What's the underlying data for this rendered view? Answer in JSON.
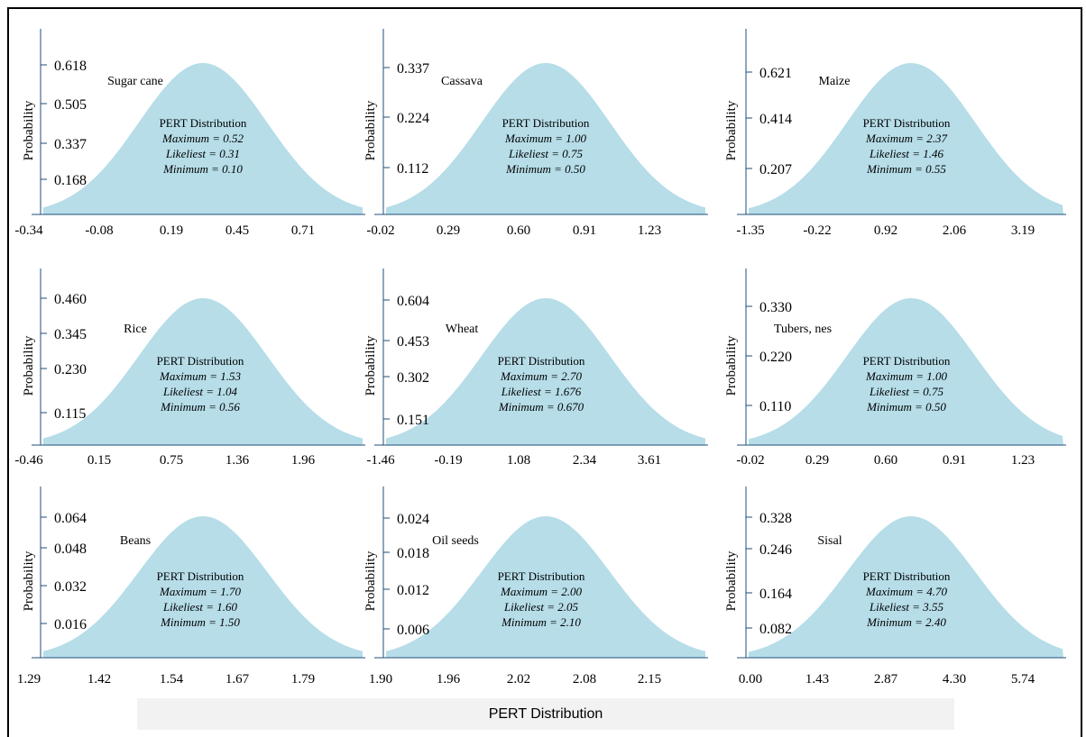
{
  "figure_caption": "PERT Distribution",
  "ylabel": "Probability",
  "colors": {
    "fill": "#b6dde8",
    "axis": "#1f4e79",
    "text": "#000000"
  },
  "chart_data": [
    {
      "type": "area",
      "title": "Sugar cane",
      "ylabel": "Probability",
      "xticks": [
        "-0.34",
        "-0.08",
        "0.19",
        "0.45",
        "0.71"
      ],
      "yticks": [
        "0.618",
        "0.505",
        "0.337",
        "0.168"
      ],
      "annotation": {
        "header": "PERT Distribution",
        "maximum": "Maximum = 0.52",
        "likeliest": "Likeliest = 0.31",
        "minimum": "Minimum = 0.10"
      },
      "series": [
        {
          "values": {
            "mode_x": 0.31,
            "peak_y": 0.63
          }
        }
      ]
    },
    {
      "type": "area",
      "title": "Cassava",
      "ylabel": "Probability",
      "xticks": [
        "-0.02",
        "0.29",
        "0.60",
        "0.91",
        "1.23"
      ],
      "yticks": [
        "0.337",
        "0.224",
        "0.112"
      ],
      "annotation": {
        "header": "PERT Distribution",
        "maximum": "Maximum = 1.00",
        "likeliest": "Likeliest = 0.75",
        "minimum": "Minimum = 0.50"
      },
      "series": [
        {
          "values": {
            "mode_x": 0.75,
            "peak_y": 0.345
          }
        }
      ]
    },
    {
      "type": "area",
      "title": "Maize",
      "ylabel": "Probability",
      "xticks": [
        "-1.35",
        "-0.22",
        "0.92",
        "2.06",
        "3.19"
      ],
      "yticks": [
        "0.621",
        "0.414",
        "0.207"
      ],
      "annotation": {
        "header": "PERT Distribution",
        "maximum": "Maximum = 2.37",
        "likeliest": "Likeliest = 1.46",
        "minimum": "Minimum = 0.55"
      },
      "series": [
        {
          "values": {
            "mode_x": 1.46,
            "peak_y": 0.63
          }
        }
      ]
    },
    {
      "type": "area",
      "title": "Rice",
      "ylabel": "Probability",
      "xticks": [
        "-0.46",
        "0.15",
        "0.75",
        "1.36",
        "1.96"
      ],
      "yticks": [
        "0.460",
        "0.345",
        "0.230",
        "0.115"
      ],
      "annotation": {
        "header": "PERT Distribution",
        "maximum": "Maximum = 1.53",
        "likeliest": "Likeliest = 1.04",
        "minimum": "Minimum = 0.56"
      },
      "series": [
        {
          "values": {
            "mode_x": 1.04,
            "peak_y": 0.465
          }
        }
      ]
    },
    {
      "type": "area",
      "title": "Wheat",
      "ylabel": "Probability",
      "xticks": [
        "-1.46",
        "-0.19",
        "1.08",
        "2.34",
        "3.61"
      ],
      "yticks": [
        "0.604",
        "0.453",
        "0.302",
        "0.151"
      ],
      "annotation": {
        "header": "PERT Distribution",
        "maximum": "Maximum = 2.70",
        "likeliest": "Likeliest = 1.676",
        "minimum": "Minimum = 0.670"
      },
      "series": [
        {
          "values": {
            "mode_x": 1.676,
            "peak_y": 0.61
          }
        }
      ]
    },
    {
      "type": "area",
      "title": "Tubers, nes",
      "ylabel": "Probability",
      "xticks": [
        "-0.02",
        "0.29",
        "0.60",
        "0.91",
        "1.23"
      ],
      "yticks": [
        "0.330",
        "0.220",
        "0.110"
      ],
      "annotation": {
        "header": "PERT Distribution",
        "maximum": "Maximum = 1.00",
        "likeliest": "Likeliest = 0.75",
        "minimum": "Minimum = 0.50"
      },
      "series": [
        {
          "values": {
            "mode_x": 0.75,
            "peak_y": 0.335
          }
        }
      ]
    },
    {
      "type": "area",
      "title": "Beans",
      "ylabel": "Probability",
      "xticks": [
        "1.29",
        "1.42",
        "1.54",
        "1.67",
        "1.79"
      ],
      "yticks": [
        "0.064",
        "0.048",
        "0.032",
        "0.016"
      ],
      "annotation": {
        "header": "PERT Distribution",
        "maximum": "Maximum = 1.70",
        "likeliest": "Likeliest = 1.60",
        "minimum": "Minimum = 1.50"
      },
      "series": [
        {
          "values": {
            "mode_x": 1.6,
            "peak_y": 0.066
          }
        }
      ]
    },
    {
      "type": "area",
      "title": "Oil seeds",
      "ylabel": "Probability",
      "xticks": [
        "1.90",
        "1.96",
        "2.02",
        "2.08",
        "2.15"
      ],
      "yticks": [
        "0.024",
        "0.018",
        "0.012",
        "0.006"
      ],
      "annotation": {
        "header": "PERT Distribution",
        "maximum": "Maximum = 2.00",
        "likeliest": "Likeliest = 2.05",
        "minimum": "Minimum = 2.10"
      },
      "series": [
        {
          "values": {
            "mode_x": 2.05,
            "peak_y": 0.0245
          }
        }
      ]
    },
    {
      "type": "area",
      "title": "Sisal",
      "ylabel": "Probability",
      "xticks": [
        "0.00",
        "1.43",
        "2.87",
        "4.30",
        "5.74"
      ],
      "yticks": [
        "0.328",
        "0.246",
        "0.164",
        "0.082"
      ],
      "annotation": {
        "header": "PERT Distribution",
        "maximum": "Maximum = 4.70",
        "likeliest": "Likeliest = 3.55",
        "minimum": "Minimum = 2.40"
      },
      "series": [
        {
          "values": {
            "mode_x": 3.55,
            "peak_y": 0.332
          }
        }
      ]
    }
  ]
}
